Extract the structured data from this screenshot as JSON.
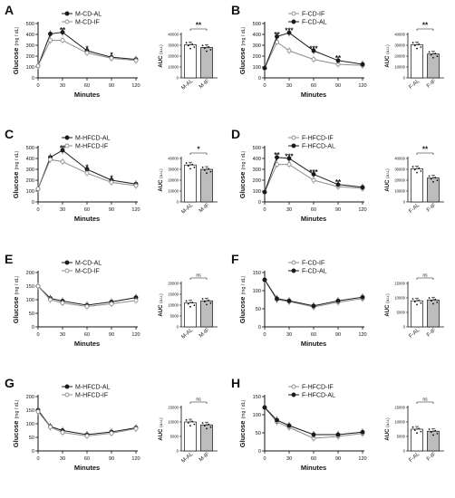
{
  "colors": {
    "ink": "#111111",
    "series_dark": "#1a1a1a",
    "series_light": "#8c8c8c",
    "bar_fill_dark": "#ffffff",
    "bar_fill_light": "#bdbdbd"
  },
  "chart_data": [
    {
      "panel": "A",
      "type": "line",
      "xlabel": "Minutes",
      "ylabel": "Glucose",
      "yunit": "(mg / dL)",
      "x": [
        0,
        15,
        30,
        60,
        90,
        120
      ],
      "ylim": [
        0,
        500
      ],
      "yticks": [
        0,
        100,
        200,
        300,
        400,
        500
      ],
      "xticks": [
        0,
        30,
        60,
        90,
        120
      ],
      "series": [
        {
          "name": "M-CD-AL",
          "marker": "filled",
          "values": [
            110,
            405,
            420,
            250,
            190,
            170
          ]
        },
        {
          "name": "M-CD-IF",
          "marker": "open",
          "values": [
            110,
            345,
            345,
            230,
            180,
            160
          ]
        }
      ],
      "sig": [
        {
          "x": 30,
          "y": 440,
          "text": "**"
        },
        {
          "x": 60,
          "y": 272,
          "text": "*"
        },
        {
          "x": 90,
          "y": 212,
          "text": "*"
        }
      ],
      "auc": {
        "type": "bar",
        "categories": [
          "M-AL",
          "M-IF"
        ],
        "values": [
          30500,
          28000
        ],
        "ylim": [
          0,
          40000
        ],
        "yticks": [
          0,
          10000,
          20000,
          30000,
          40000
        ],
        "ylabel": "AUC",
        "yunit": "(a.u.)",
        "sig": "**"
      }
    },
    {
      "panel": "B",
      "type": "line",
      "xlabel": "Minutes",
      "ylabel": "Glucose",
      "yunit": "(mg / dL)",
      "x": [
        0,
        15,
        30,
        60,
        90,
        120
      ],
      "ylim": [
        0,
        500
      ],
      "yticks": [
        0,
        100,
        200,
        300,
        400,
        500
      ],
      "xticks": [
        0,
        30,
        60,
        90,
        120
      ],
      "series": [
        {
          "name": "F-CD-IF",
          "marker": "open",
          "values": [
            90,
            330,
            250,
            170,
            125,
            115
          ]
        },
        {
          "name": "F-CD-AL",
          "marker": "filled",
          "values": [
            90,
            380,
            415,
            250,
            160,
            125
          ]
        }
      ],
      "sig": [
        {
          "x": 15,
          "y": 400,
          "text": "**"
        },
        {
          "x": 30,
          "y": 437,
          "text": "***"
        },
        {
          "x": 60,
          "y": 272,
          "text": "***"
        },
        {
          "x": 90,
          "y": 182,
          "text": "**"
        }
      ],
      "auc": {
        "type": "bar",
        "categories": [
          "F-AL",
          "F-IF"
        ],
        "values": [
          30500,
          22000
        ],
        "ylim": [
          0,
          40000
        ],
        "yticks": [
          0,
          10000,
          20000,
          30000,
          40000
        ],
        "ylabel": "AUC",
        "yunit": "(a.u.)",
        "sig": "**"
      }
    },
    {
      "panel": "C",
      "type": "line",
      "xlabel": "Minutes",
      "ylabel": "Glucose",
      "yunit": "(mg / dL)",
      "x": [
        0,
        15,
        30,
        60,
        90,
        120
      ],
      "ylim": [
        0,
        500
      ],
      "yticks": [
        0,
        100,
        200,
        300,
        400,
        500
      ],
      "xticks": [
        0,
        30,
        60,
        90,
        120
      ],
      "series": [
        {
          "name": "M-HFCD-AL",
          "marker": "filled",
          "values": [
            120,
            410,
            475,
            300,
            200,
            165
          ]
        },
        {
          "name": "M-HFCD-IF",
          "marker": "open",
          "values": [
            120,
            390,
            370,
            265,
            180,
            150
          ]
        }
      ],
      "sig": [
        {
          "x": 30,
          "y": 497,
          "text": "**"
        },
        {
          "x": 60,
          "y": 322,
          "text": "*"
        },
        {
          "x": 90,
          "y": 222,
          "text": "*"
        }
      ],
      "auc": {
        "type": "bar",
        "categories": [
          "M-AL",
          "M-IF"
        ],
        "values": [
          34000,
          30000
        ],
        "ylim": [
          0,
          40000
        ],
        "yticks": [
          0,
          10000,
          20000,
          30000,
          40000
        ],
        "ylabel": "AUC",
        "yunit": "(a.u.)",
        "sig": "*"
      }
    },
    {
      "panel": "D",
      "type": "line",
      "xlabel": "Minutes",
      "ylabel": "Glucose",
      "yunit": "(mg / dL)",
      "x": [
        0,
        15,
        30,
        60,
        90,
        120
      ],
      "ylim": [
        0,
        500
      ],
      "yticks": [
        0,
        100,
        200,
        300,
        400,
        500
      ],
      "xticks": [
        0,
        30,
        60,
        90,
        120
      ],
      "series": [
        {
          "name": "F-HFCD-IF",
          "marker": "open",
          "values": [
            90,
            345,
            345,
            200,
            140,
            125
          ]
        },
        {
          "name": "F-HFCD-AL",
          "marker": "filled",
          "values": [
            90,
            410,
            400,
            255,
            160,
            135
          ]
        }
      ],
      "sig": [
        {
          "x": 15,
          "y": 432,
          "text": "**"
        },
        {
          "x": 30,
          "y": 422,
          "text": "***"
        },
        {
          "x": 60,
          "y": 277,
          "text": "***"
        },
        {
          "x": 90,
          "y": 182,
          "text": "**"
        }
      ],
      "auc": {
        "type": "bar",
        "categories": [
          "F-AL",
          "F-IF"
        ],
        "values": [
          30500,
          22000
        ],
        "ylim": [
          0,
          40000
        ],
        "yticks": [
          0,
          10000,
          20000,
          30000,
          40000
        ],
        "ylabel": "AUC",
        "yunit": "(a.u.)",
        "sig": "**"
      }
    },
    {
      "panel": "E",
      "type": "line",
      "xlabel": "Minutes",
      "ylabel": "Glucose",
      "yunit": "(mg / dL)",
      "x": [
        0,
        15,
        30,
        60,
        90,
        120
      ],
      "ylim": [
        0,
        200
      ],
      "yticks": [
        0,
        50,
        100,
        150,
        200
      ],
      "xticks": [
        0,
        30,
        60,
        90,
        120
      ],
      "series": [
        {
          "name": "M-CD-AL",
          "marker": "filled",
          "values": [
            150,
            105,
            95,
            80,
            92,
            108
          ]
        },
        {
          "name": "M-CD-IF",
          "marker": "open",
          "values": [
            150,
            100,
            88,
            75,
            85,
            97
          ]
        }
      ],
      "sig": [],
      "auc": {
        "type": "bar",
        "categories": [
          "M-AL",
          "M-IF"
        ],
        "values": [
          11000,
          12000
        ],
        "ylim": [
          0,
          20000
        ],
        "yticks": [
          0,
          5000,
          10000,
          15000,
          20000
        ],
        "ylabel": "AUC",
        "yunit": "(a.u.)",
        "sig": "ns"
      }
    },
    {
      "panel": "F",
      "type": "line",
      "xlabel": "Minutes",
      "ylabel": "Glucose",
      "yunit": "(mg / dL)",
      "x": [
        0,
        15,
        30,
        60,
        90,
        120
      ],
      "ylim": [
        0,
        150
      ],
      "yticks": [
        0,
        50,
        100,
        150
      ],
      "xticks": [
        0,
        30,
        60,
        90,
        120
      ],
      "series": [
        {
          "name": "F-CD-IF",
          "marker": "open",
          "values": [
            130,
            75,
            70,
            55,
            68,
            78
          ]
        },
        {
          "name": "F-CD-AL",
          "marker": "filled",
          "values": [
            130,
            78,
            72,
            58,
            72,
            82
          ]
        }
      ],
      "sig": [],
      "auc": {
        "type": "bar",
        "categories": [
          "F-AL",
          "F-IF"
        ],
        "values": [
          9000,
          9300
        ],
        "ylim": [
          0,
          15000
        ],
        "yticks": [
          0,
          5000,
          10000,
          15000
        ],
        "ylabel": "AUC",
        "yunit": "(a.u.)",
        "sig": "ns"
      }
    },
    {
      "panel": "G",
      "type": "line",
      "xlabel": "Minutes",
      "ylabel": "Glucose",
      "yunit": "(mg / dL)",
      "x": [
        0,
        15,
        30,
        60,
        90,
        120
      ],
      "ylim": [
        0,
        200
      ],
      "yticks": [
        0,
        50,
        100,
        150,
        200
      ],
      "xticks": [
        0,
        30,
        60,
        90,
        120
      ],
      "series": [
        {
          "name": "M-HFCD-AL",
          "marker": "filled",
          "values": [
            150,
            90,
            75,
            60,
            70,
            85
          ]
        },
        {
          "name": "M-HFCD-IF",
          "marker": "open",
          "values": [
            145,
            88,
            68,
            55,
            65,
            82
          ]
        }
      ],
      "sig": [],
      "auc": {
        "type": "bar",
        "categories": [
          "M-AL",
          "M-IF"
        ],
        "values": [
          10000,
          9000
        ],
        "ylim": [
          0,
          15000
        ],
        "yticks": [
          0,
          5000,
          10000,
          15000
        ],
        "ylabel": "AUC",
        "yunit": "(a.u.)",
        "sig": "ns"
      }
    },
    {
      "panel": "H",
      "type": "line",
      "xlabel": "Minutes",
      "ylabel": "Glucose",
      "yunit": "(mg / dL)",
      "x": [
        0,
        15,
        30,
        60,
        90,
        120
      ],
      "ylim": [
        0,
        150
      ],
      "yticks": [
        0,
        50,
        100,
        150
      ],
      "xticks": [
        0,
        30,
        60,
        90,
        120
      ],
      "series": [
        {
          "name": "F-HFCD-IF",
          "marker": "open",
          "values": [
            120,
            80,
            65,
            35,
            40,
            48
          ]
        },
        {
          "name": "F-HFCD-AL",
          "marker": "filled",
          "values": [
            120,
            85,
            70,
            45,
            45,
            52
          ]
        }
      ],
      "sig": [],
      "auc": {
        "type": "bar",
        "categories": [
          "F-AL",
          "F-IF"
        ],
        "values": [
          7500,
          6800
        ],
        "ylim": [
          0,
          15000
        ],
        "yticks": [
          0,
          5000,
          10000,
          15000
        ],
        "ylabel": "AUC",
        "yunit": "(a.u.)",
        "sig": "ns"
      }
    }
  ]
}
